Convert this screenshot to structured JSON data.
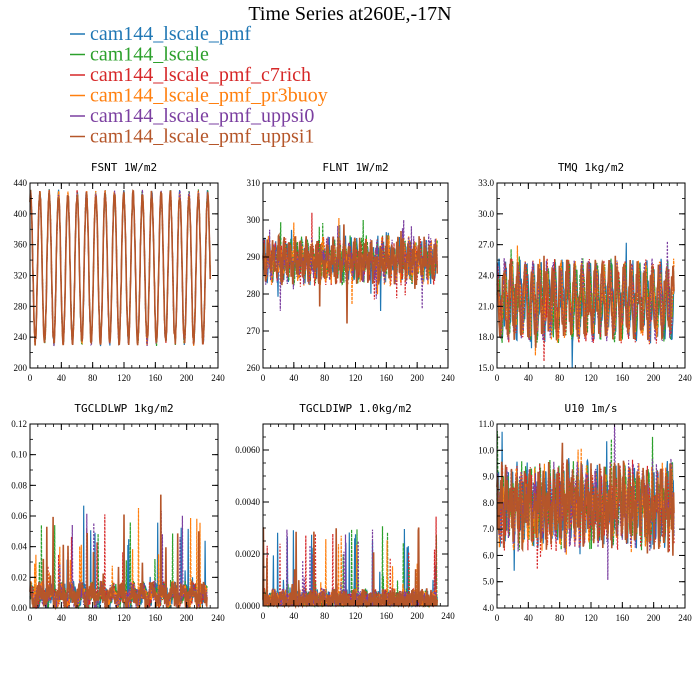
{
  "figure": {
    "title": "Time Series at260E,-17N"
  },
  "legend": [
    {
      "label": "cam144_lscale_pmf",
      "color": "#1f77b4"
    },
    {
      "label": "cam144_lscale",
      "color": "#2ca02c"
    },
    {
      "label": "cam144_lscale_pmf_c7rich",
      "color": "#d62728"
    },
    {
      "label": "cam144_lscale_pmf_pr3buoy",
      "color": "#ff7f0e"
    },
    {
      "label": "cam144_lscale_pmf_uppsi0",
      "color": "#7b3fa0"
    },
    {
      "label": "cam144_lscale_pmf_uppsi1",
      "color": "#b5562a"
    }
  ],
  "chart_data": [
    {
      "type": "line",
      "title": "FSNT 1W/m2",
      "xlim": [
        0,
        240
      ],
      "ylim": [
        200,
        440
      ],
      "xticks": [
        "0",
        "40",
        "80",
        "120",
        "160",
        "200",
        "240"
      ],
      "yticks": [
        "200",
        "240",
        "280",
        "320",
        "360",
        "400",
        "440"
      ],
      "x_minor_step": 10,
      "y_minor_step": 20,
      "x_end": 230,
      "series_hint": {
        "base": 330,
        "amp": 95,
        "period": 11.9,
        "noise": 7,
        "spike": 0,
        "nonneg": false
      }
    },
    {
      "type": "line",
      "title": "FLNT 1W/m2",
      "xlim": [
        0,
        240
      ],
      "ylim": [
        260,
        310
      ],
      "xticks": [
        "0",
        "40",
        "80",
        "120",
        "160",
        "200",
        "240"
      ],
      "yticks": [
        "260",
        "270",
        "280",
        "290",
        "300",
        "310"
      ],
      "x_minor_step": 10,
      "y_minor_step": 5,
      "x_end": 226,
      "series_hint": {
        "base": 289,
        "amp": 3,
        "period": 7,
        "noise": 4,
        "spike": 12,
        "nonneg": false
      }
    },
    {
      "type": "line",
      "title": "TMQ 1kg/m2",
      "xlim": [
        0,
        240
      ],
      "ylim": [
        15.0,
        33.0
      ],
      "xticks": [
        "0",
        "40",
        "80",
        "120",
        "160",
        "200",
        "240"
      ],
      "yticks": [
        "15.0",
        "18.0",
        "21.0",
        "24.0",
        "27.0",
        "30.0",
        "33.0"
      ],
      "x_minor_step": 10,
      "y_minor_step": 1.5,
      "x_end": 226,
      "series_hint": {
        "base": 21.5,
        "amp": 2.8,
        "period": 9,
        "noise": 1.4,
        "spike": 4,
        "nonneg": false
      }
    },
    {
      "type": "line",
      "title": "TGCLDLWP 1kg/m2",
      "xlim": [
        0,
        240
      ],
      "ylim": [
        0.0,
        0.12
      ],
      "xticks": [
        "0",
        "40",
        "80",
        "120",
        "160",
        "200",
        "240"
      ],
      "yticks": [
        "0.00",
        "0.02",
        "0.04",
        "0.06",
        "0.08",
        "0.10",
        "0.12"
      ],
      "x_minor_step": 10,
      "y_minor_step": 0.01,
      "x_end": 226,
      "series_hint": {
        "base": 0.008,
        "amp": 0.004,
        "period": 13,
        "noise": 0.006,
        "spike": 0.06,
        "nonneg": true
      }
    },
    {
      "type": "line",
      "title": "TGCLDIWP 1.0kg/m2",
      "xlim": [
        0,
        240
      ],
      "ylim": [
        0.0,
        0.007
      ],
      "xticks": [
        "0",
        "40",
        "80",
        "120",
        "160",
        "200",
        "240"
      ],
      "yticks": [
        "0.0000",
        "0.0020",
        "0.0040",
        "0.0060"
      ],
      "ytick_values": [
        0,
        0.002,
        0.004,
        0.006
      ],
      "x_minor_step": 10,
      "y_minor_step": 0.0005,
      "x_end": 226,
      "series_hint": {
        "base": 0.0002,
        "amp": 0.0001,
        "period": 13,
        "noise": 0.0004,
        "spike": 0.003,
        "nonneg": true
      }
    },
    {
      "type": "line",
      "title": "U10 1m/s",
      "xlim": [
        0,
        240
      ],
      "ylim": [
        4.0,
        11.0
      ],
      "xticks": [
        "0",
        "40",
        "80",
        "120",
        "160",
        "200",
        "240"
      ],
      "yticks": [
        "4.0",
        "5.0",
        "6.0",
        "7.0",
        "8.0",
        "9.0",
        "10.0",
        "11.0"
      ],
      "x_minor_step": 10,
      "y_minor_step": 0.5,
      "x_end": 226,
      "series_hint": {
        "base": 7.9,
        "amp": 0.8,
        "period": 6,
        "noise": 1.0,
        "spike": 2,
        "nonneg": false
      }
    }
  ]
}
